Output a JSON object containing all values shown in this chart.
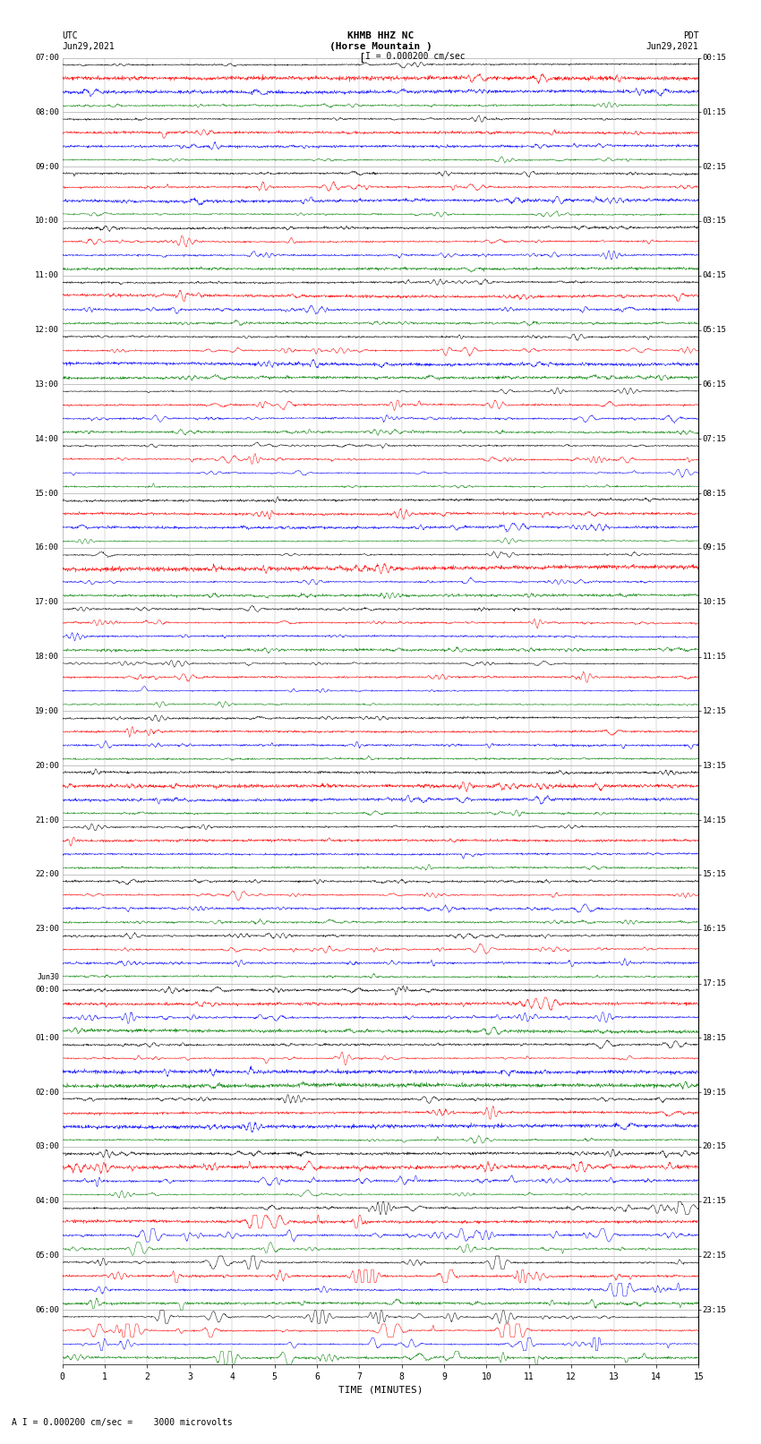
{
  "title_line1": "KHMB HHZ NC",
  "title_line2": "(Horse Mountain )",
  "scale_label": "I = 0.000200 cm/sec",
  "footer_label": "A I = 0.000200 cm/sec =    3000 microvolts",
  "xlabel": "TIME (MINUTES)",
  "left_label": "UTC",
  "left_date": "Jun29,2021",
  "right_label": "PDT",
  "right_date": "Jun29,2021",
  "background_color": "white",
  "fig_width": 8.5,
  "fig_height": 16.13,
  "xmin": 0,
  "xmax": 15,
  "grid_color": "#aaaaaa",
  "trace_colors": [
    "black",
    "red",
    "blue",
    "green"
  ],
  "utc_hour_labels": [
    "07:00",
    "08:00",
    "09:00",
    "10:00",
    "11:00",
    "12:00",
    "13:00",
    "14:00",
    "15:00",
    "16:00",
    "17:00",
    "18:00",
    "19:00",
    "20:00",
    "21:00",
    "22:00",
    "23:00",
    "Jun30\n00:00",
    "01:00",
    "02:00",
    "03:00",
    "04:00",
    "05:00",
    "06:00"
  ],
  "pdt_hour_labels": [
    "00:15",
    "01:15",
    "02:15",
    "03:15",
    "04:15",
    "05:15",
    "06:15",
    "07:15",
    "08:15",
    "09:15",
    "10:15",
    "11:15",
    "12:15",
    "13:15",
    "14:15",
    "15:15",
    "16:15",
    "17:15",
    "18:15",
    "19:15",
    "20:15",
    "21:15",
    "22:15",
    "23:15"
  ],
  "n_hours": 24,
  "traces_per_hour": 4,
  "amplitude_base": 0.38
}
